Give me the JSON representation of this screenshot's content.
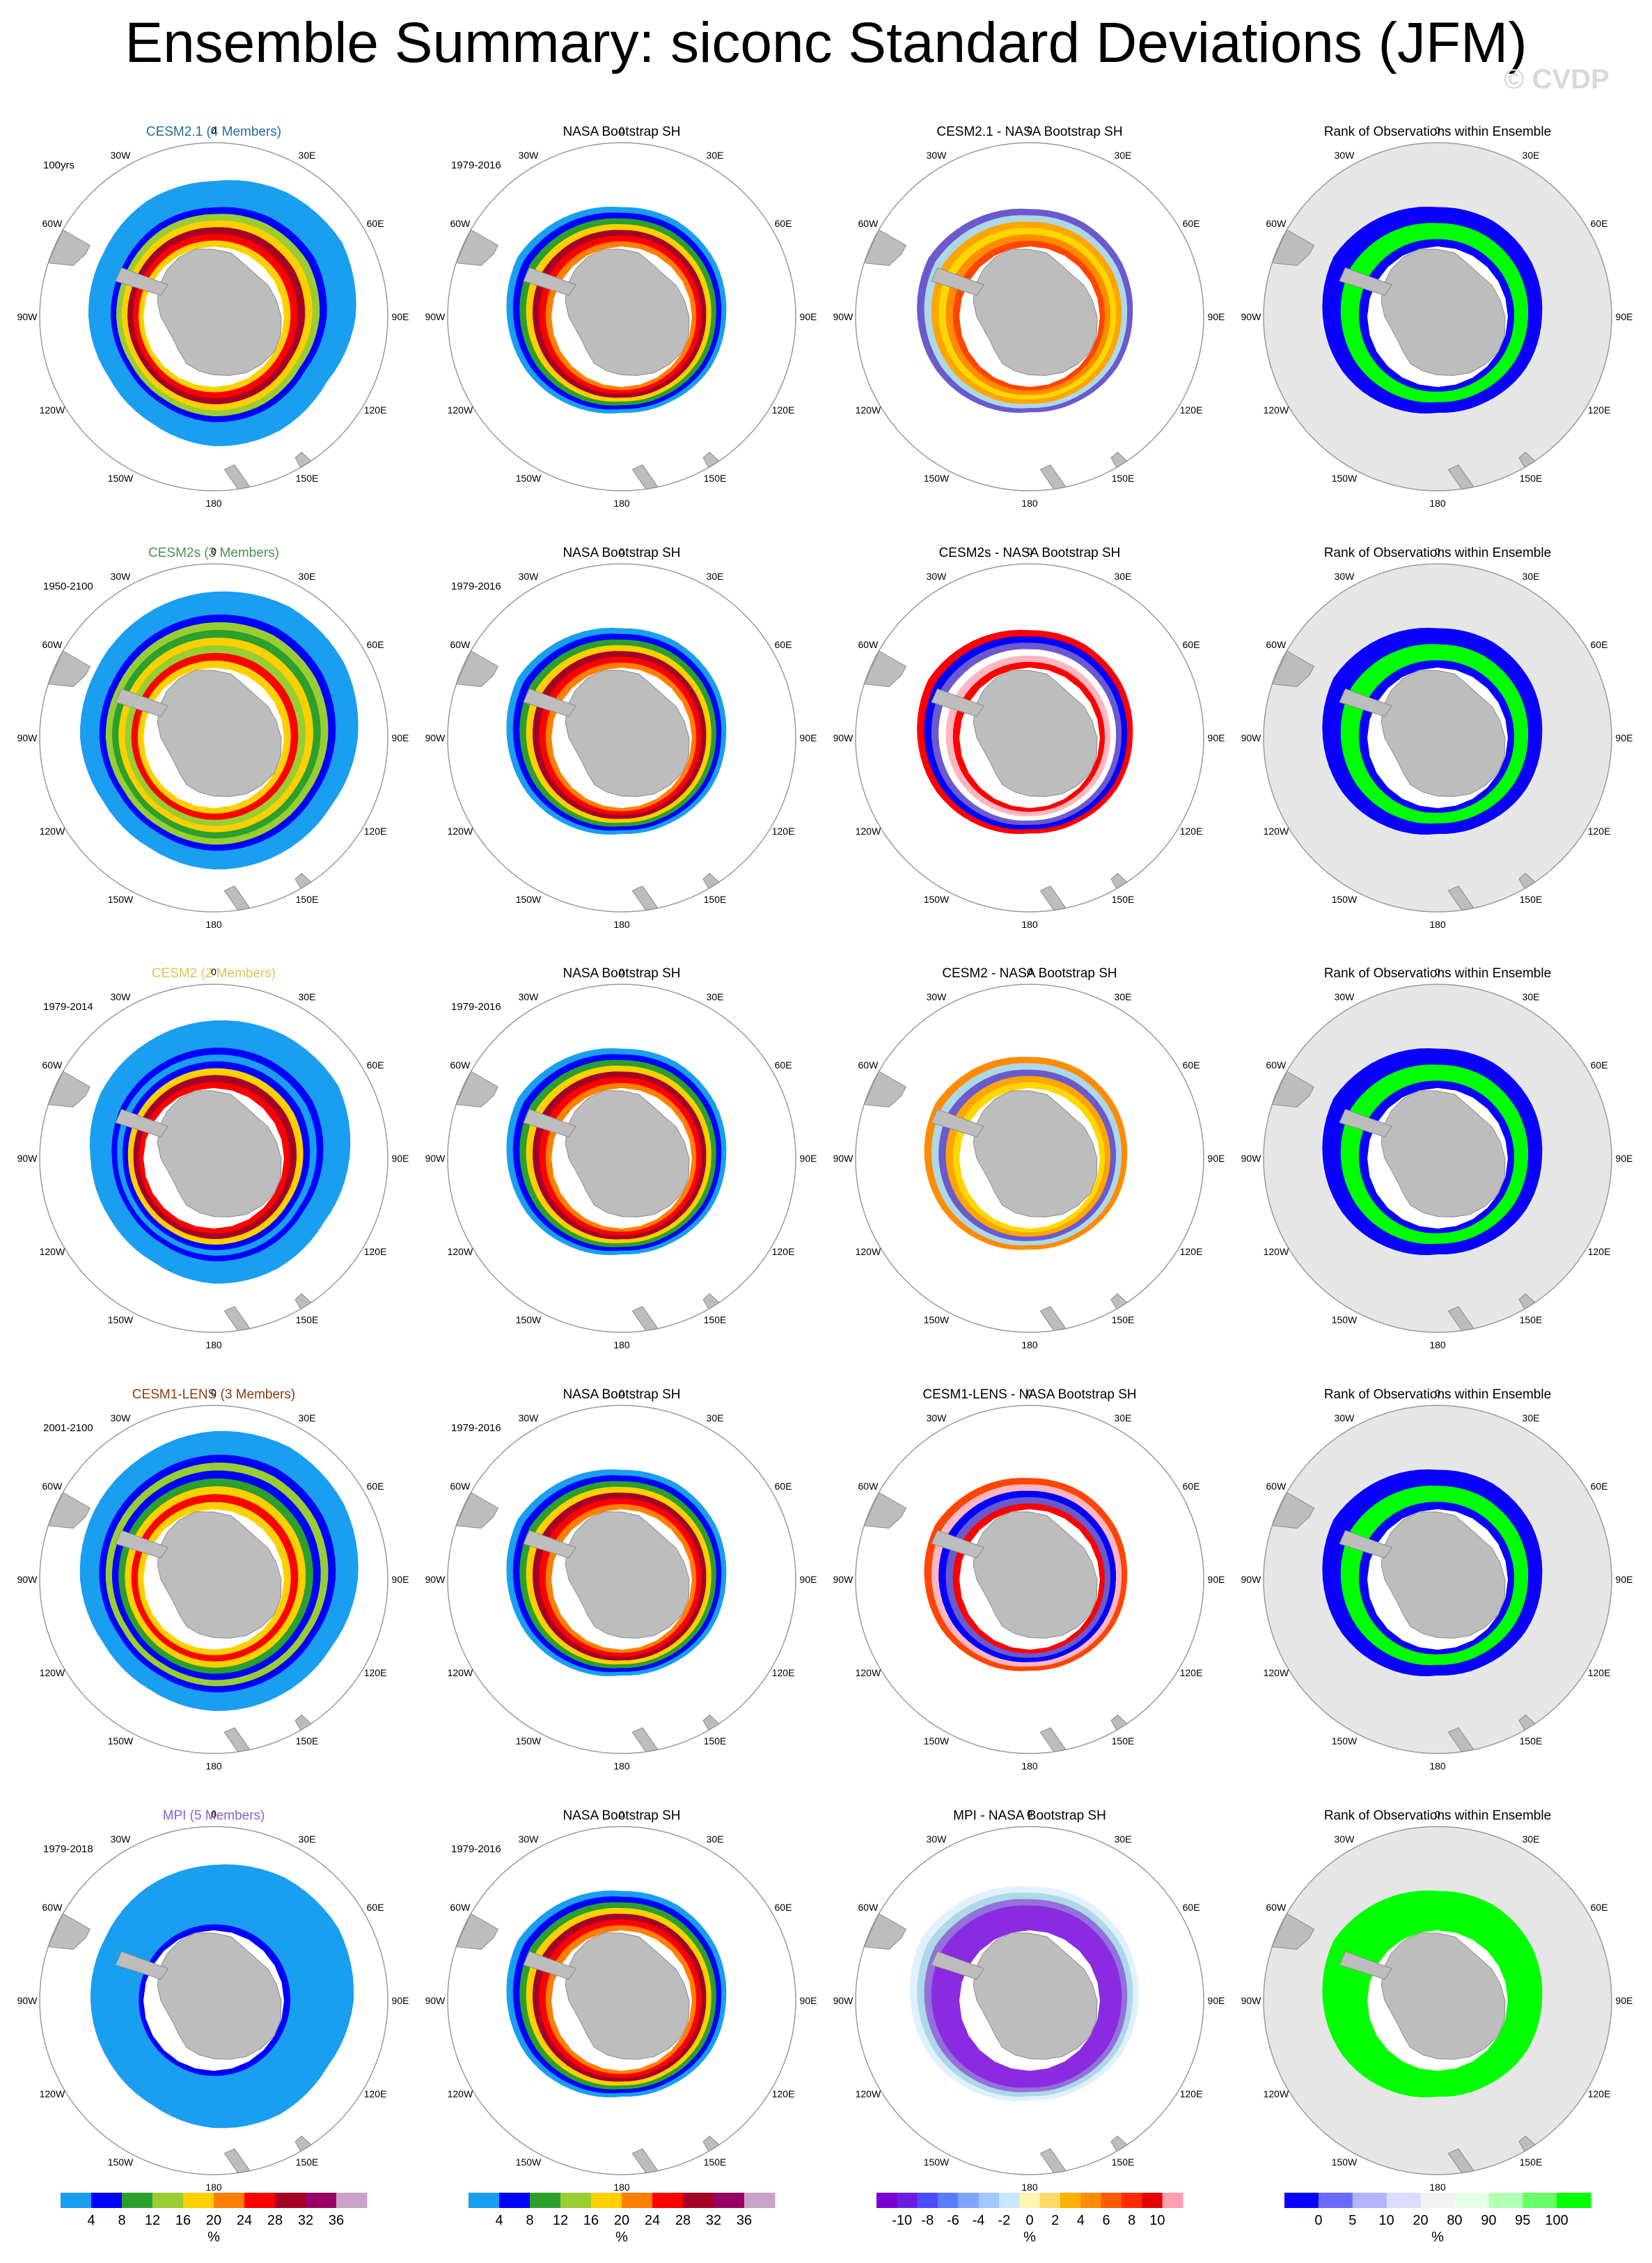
{
  "title": "Ensemble Summary: siconc Standard Deviations (JFM)",
  "watermark": "© CVDP",
  "longitude_labels": [
    "0",
    "30E",
    "60E",
    "90E",
    "120E",
    "150E",
    "180",
    "150W",
    "120W",
    "90W",
    "60W",
    "30W"
  ],
  "colors": {
    "land": "#bdbdbd",
    "rank_ocean_bg": "#e6e6e6",
    "map_border": "#9a9a9a"
  },
  "rows": [
    {
      "model": "CESM2.1 (4 Members)",
      "model_color": "#1f6f9a",
      "period": "100yrs",
      "obs_title": "NASA Bootstrap SH",
      "obs_period": "1979-2016",
      "diff_title": "CESM2.1 - NASA Bootstrap SH",
      "rank_title": "Rank of Observations within Ensemble",
      "model_ext": [
        1.3,
        1.38,
        1.42,
        1.36,
        1.25,
        1.26,
        1.24,
        1.18,
        1.16,
        1.2,
        1.22,
        1.28
      ],
      "obs_ext": [
        1.05,
        1.06,
        1.04,
        1.0,
        0.98,
        0.94,
        0.92,
        0.98,
        1.05,
        1.1,
        1.15,
        1.1
      ],
      "model_profile": [
        "#ffd000",
        "#ff0000",
        "#a50026",
        "#ffd000",
        "#9acd32",
        "#0000ff",
        "#199ef0",
        "#199ef0",
        "#199ef0",
        "#199ef0"
      ],
      "obs_profile": [
        "#ff7f00",
        "#ff0000",
        "#a50026",
        "#ffd000",
        "#2ca02c",
        "#0000ff",
        "#199ef0"
      ],
      "diff_profile": [
        "#ff4500",
        "#ff8c00",
        "#ffd700",
        "#ffa500",
        "#add8e6",
        "#6a5acd",
        "#ffffff"
      ],
      "rank_profile": [
        "#0a00ff",
        "#00ff00",
        "#00ff00",
        "#0a00ff",
        "#0a00ff"
      ]
    },
    {
      "model": "CESM2s (3 Members)",
      "model_color": "#4f8f4f",
      "period": "1950-2100",
      "obs_title": "NASA Bootstrap SH",
      "obs_period": "1979-2016",
      "diff_title": "CESM2s - NASA Bootstrap SH",
      "rank_title": "Rank of Observations within Ensemble",
      "model_ext": [
        1.4,
        1.45,
        1.44,
        1.38,
        1.3,
        1.28,
        1.26,
        1.22,
        1.22,
        1.28,
        1.3,
        1.35
      ],
      "obs_ext": [
        1.05,
        1.06,
        1.04,
        1.0,
        0.98,
        0.94,
        0.92,
        0.98,
        1.05,
        1.1,
        1.15,
        1.1
      ],
      "model_profile": [
        "#ffd000",
        "#ff0000",
        "#9acd32",
        "#ffd000",
        "#2ca02c",
        "#9acd32",
        "#0000ff",
        "#199ef0",
        "#199ef0",
        "#199ef0"
      ],
      "obs_profile": [
        "#ff7f00",
        "#ff0000",
        "#a50026",
        "#ffd000",
        "#2ca02c",
        "#0000ff",
        "#199ef0"
      ],
      "diff_profile": [
        "#ff0000",
        "#ffb6c1",
        "#ffffff",
        "#6a5acd",
        "#0000ff",
        "#ff0000",
        "#ffffff"
      ],
      "rank_profile": [
        "#0a00ff",
        "#00ff00",
        "#00ff00",
        "#0a00ff",
        "#0a00ff"
      ]
    },
    {
      "model": "CESM2 (2 Members)",
      "model_color": "#e6c15a",
      "period": "1979-2014",
      "obs_title": "NASA Bootstrap SH",
      "obs_period": "1979-2016",
      "diff_title": "CESM2 - NASA Bootstrap SH",
      "rank_title": "Rank of Observations within Ensemble",
      "model_ext": [
        1.32,
        1.36,
        1.38,
        1.3,
        1.22,
        1.22,
        1.2,
        1.15,
        1.15,
        1.18,
        1.25,
        1.28
      ],
      "obs_ext": [
        1.05,
        1.06,
        1.04,
        1.0,
        0.98,
        0.94,
        0.92,
        0.98,
        1.05,
        1.1,
        1.15,
        1.1
      ],
      "model_profile": [
        "#ff0000",
        "#a50026",
        "#ffd000",
        "#0000ff",
        "#199ef0",
        "#0000ff",
        "#199ef0",
        "#199ef0",
        "#199ef0",
        "#199ef0"
      ],
      "obs_profile": [
        "#ff7f00",
        "#ff0000",
        "#a50026",
        "#ffd000",
        "#2ca02c",
        "#0000ff",
        "#199ef0"
      ],
      "diff_profile": [
        "#ffd700",
        "#ffa500",
        "#6a5acd",
        "#add8e6",
        "#ff8c00",
        "#ffffff",
        "#ffffff"
      ],
      "rank_profile": [
        "#0a00ff",
        "#00ff00",
        "#00ff00",
        "#0a00ff",
        "#0a00ff"
      ]
    },
    {
      "model": "CESM1-LENS (3 Members)",
      "model_color": "#8b3a0f",
      "period": "2001-2100",
      "obs_title": "NASA Bootstrap SH",
      "obs_period": "1979-2016",
      "diff_title": "CESM1-LENS - NASA Bootstrap SH",
      "rank_title": "Rank of Observations within Ensemble",
      "model_ext": [
        1.42,
        1.46,
        1.44,
        1.38,
        1.3,
        1.28,
        1.26,
        1.22,
        1.22,
        1.28,
        1.32,
        1.36
      ],
      "obs_ext": [
        1.05,
        1.06,
        1.04,
        1.0,
        0.98,
        0.94,
        0.92,
        0.98,
        1.05,
        1.1,
        1.15,
        1.1
      ],
      "model_profile": [
        "#ffd000",
        "#ff0000",
        "#ffd000",
        "#2ca02c",
        "#0000ff",
        "#9acd32",
        "#0000ff",
        "#199ef0",
        "#199ef0",
        "#199ef0"
      ],
      "obs_profile": [
        "#ff7f00",
        "#ff0000",
        "#a50026",
        "#ffd000",
        "#2ca02c",
        "#0000ff",
        "#199ef0"
      ],
      "diff_profile": [
        "#ff0000",
        "#6a5acd",
        "#0000ff",
        "#ffb6c1",
        "#ff4500",
        "#ffffff",
        "#ffffff"
      ],
      "rank_profile": [
        "#0a00ff",
        "#00ff00",
        "#00ff00",
        "#0a00ff",
        "#0a00ff"
      ]
    },
    {
      "model": "MPI (5 Members)",
      "model_color": "#8a5fd1",
      "period": "1979-2018",
      "obs_title": "NASA Bootstrap SH",
      "obs_period": "1979-2016",
      "diff_title": "MPI - NASA Bootstrap SH",
      "rank_title": "Rank of Observations within Ensemble",
      "model_ext": [
        1.3,
        1.36,
        1.38,
        1.34,
        1.26,
        1.26,
        1.22,
        1.16,
        1.16,
        1.18,
        1.2,
        1.26
      ],
      "obs_ext": [
        1.05,
        1.06,
        1.04,
        1.0,
        0.98,
        0.94,
        0.92,
        0.98,
        1.05,
        1.1,
        1.15,
        1.1
      ],
      "model_profile": [
        "#0000ff",
        "#199ef0",
        "#199ef0",
        "#199ef0",
        "#199ef0",
        "#199ef0",
        "#199ef0",
        "#199ef0",
        "#199ef0",
        "#199ef0"
      ],
      "obs_profile": [
        "#ff7f00",
        "#ff0000",
        "#a50026",
        "#ffd000",
        "#2ca02c",
        "#0000ff",
        "#199ef0"
      ],
      "diff_profile": [
        "#8a2be2",
        "#8a2be2",
        "#8a2be2",
        "#8a2be2",
        "#9370db",
        "#add8e6",
        "#e0f0ff"
      ],
      "rank_profile": [
        "#00ff00",
        "#00ff00",
        "#00ff00",
        "#00ff00",
        "#00ff00"
      ]
    }
  ],
  "colorbars": [
    {
      "name": "std-colorbar",
      "unit": "%",
      "labels": [
        "4",
        "8",
        "12",
        "16",
        "20",
        "24",
        "28",
        "32",
        "36"
      ],
      "colors": [
        "#199ef0",
        "#0000ff",
        "#2ca02c",
        "#9acd32",
        "#ffd000",
        "#ff7f00",
        "#ff0000",
        "#a50026",
        "#990066",
        "#c8a2c8"
      ]
    },
    {
      "name": "std-colorbar-obs",
      "unit": "%",
      "labels": [
        "4",
        "8",
        "12",
        "16",
        "20",
        "24",
        "28",
        "32",
        "36"
      ],
      "colors": [
        "#199ef0",
        "#0000ff",
        "#2ca02c",
        "#9acd32",
        "#ffd000",
        "#ff7f00",
        "#ff0000",
        "#a50026",
        "#990066",
        "#c8a2c8"
      ]
    },
    {
      "name": "diff-colorbar",
      "unit": "%",
      "labels": [
        "-10",
        "-8",
        "-6",
        "-4",
        "-2",
        "0",
        "2",
        "4",
        "6",
        "8",
        "10"
      ],
      "colors": [
        "#7b00d4",
        "#6a1de0",
        "#4b4bff",
        "#5a7cff",
        "#7fa6ff",
        "#a3c7ff",
        "#c9e6ff",
        "#fff3b0",
        "#ffd966",
        "#ffb000",
        "#ff8c00",
        "#ff5a00",
        "#ff2a00",
        "#e60000",
        "#ff9fb0"
      ]
    },
    {
      "name": "rank-colorbar",
      "unit": "%",
      "labels": [
        "0",
        "5",
        "10",
        "20",
        "80",
        "90",
        "95",
        "100"
      ],
      "colors": [
        "#0a00ff",
        "#6a6aff",
        "#b3b3ff",
        "#dcdcff",
        "#f2f2f2",
        "#e6ffe6",
        "#b3ffb3",
        "#66ff66",
        "#00ff00"
      ]
    }
  ]
}
